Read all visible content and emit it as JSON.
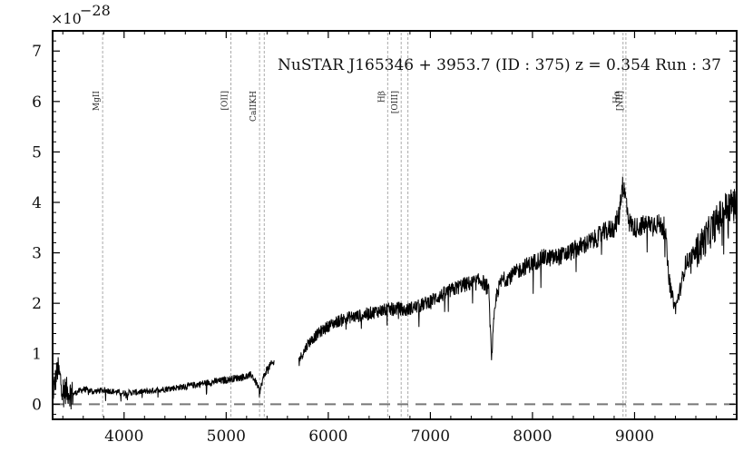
{
  "chart_data": {
    "type": "line",
    "title": "NuSTAR J165346 + 3953.7 (ID : 375)   z = 0.354   Run : 37",
    "xlabel": "",
    "ylabel": "",
    "y_scale_label": "×10",
    "y_scale_exponent": "−28",
    "xlim": [
      3300,
      10000
    ],
    "ylim": [
      -0.3,
      7.4
    ],
    "x_ticks": [
      4000,
      5000,
      6000,
      7000,
      8000,
      9000
    ],
    "x_tick_labels": [
      "4000",
      "5000",
      "6000",
      "7000",
      "8000",
      "9000"
    ],
    "y_ticks": [
      0,
      1,
      2,
      3,
      4,
      5,
      6,
      7
    ],
    "y_tick_labels": [
      "0",
      "1",
      "2",
      "3",
      "4",
      "5",
      "6",
      "7"
    ],
    "grid": false,
    "zero_line": {
      "y": 0,
      "style": "dashed"
    },
    "spectral_lines": [
      {
        "label": "MgII",
        "x": [
          3790
        ]
      },
      {
        "label": "[OII]",
        "x": [
          5046
        ]
      },
      {
        "label": "CaIIKH",
        "x": [
          5327,
          5373
        ]
      },
      {
        "label": "Hβ",
        "x": [
          6582
        ]
      },
      {
        "label": "[OIII]",
        "x": [
          6714,
          6780
        ]
      },
      {
        "label": "Hα",
        "x": [
          8887
        ]
      },
      {
        "label": "[NII]",
        "x": [
          8915
        ]
      }
    ],
    "series": [
      {
        "x": [
          3300,
          3350,
          3400,
          3500,
          3600,
          3700,
          3800,
          3900,
          4000,
          4200,
          4400,
          4600,
          4800,
          5000,
          5100,
          5200,
          5250,
          5300,
          5330,
          5360,
          5400,
          5450,
          5500,
          5700,
          5750,
          5800,
          5900,
          6000,
          6100,
          6200,
          6300,
          6400,
          6500,
          6600,
          6700,
          6750,
          6800,
          6900,
          7000,
          7100,
          7200,
          7300,
          7400,
          7500,
          7570,
          7600,
          7620,
          7650,
          7700,
          7800,
          7900,
          8000,
          8100,
          8200,
          8300,
          8400,
          8500,
          8600,
          8700,
          8800,
          8850,
          8880,
          8920,
          8950,
          9000,
          9100,
          9200,
          9300,
          9330,
          9360,
          9400,
          9450,
          9500,
          9600,
          9700,
          9800,
          9900,
          10000
        ],
        "values": [
          0.2,
          0.7,
          0.3,
          0.2,
          0.3,
          0.25,
          0.28,
          0.25,
          0.22,
          0.25,
          0.3,
          0.35,
          0.42,
          0.48,
          0.52,
          0.55,
          0.58,
          0.4,
          0.25,
          0.5,
          0.7,
          0.8,
          0.85,
          0.85,
          1.0,
          1.2,
          1.4,
          1.55,
          1.65,
          1.72,
          1.75,
          1.8,
          1.85,
          1.88,
          1.9,
          1.85,
          1.9,
          1.95,
          2.05,
          2.15,
          2.25,
          2.35,
          2.4,
          2.45,
          2.3,
          0.9,
          1.6,
          2.2,
          2.45,
          2.55,
          2.7,
          2.8,
          2.9,
          2.9,
          2.95,
          3.05,
          3.15,
          3.25,
          3.4,
          3.5,
          3.75,
          4.4,
          4.0,
          3.6,
          3.5,
          3.55,
          3.6,
          3.5,
          2.6,
          2.2,
          1.9,
          2.3,
          2.8,
          3.0,
          3.3,
          3.6,
          3.9,
          4.0
        ]
      }
    ],
    "gaps": [
      [
        5470,
        5710
      ]
    ]
  }
}
